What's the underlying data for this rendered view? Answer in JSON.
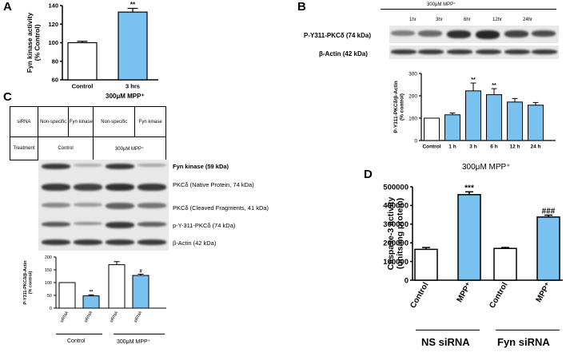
{
  "colors": {
    "bar_blue": "#79c2ef",
    "bar_white": "#ffffff",
    "stroke": "#000000"
  },
  "panelA": {
    "letter": "A",
    "caption": "300μM  MPP⁺",
    "chart_data": {
      "type": "bar",
      "categories": [
        "Control",
        "3 hrs"
      ],
      "values": [
        100,
        133
      ],
      "errors": [
        1.5,
        4
      ],
      "bar_colors": [
        "#ffffff",
        "#79c2ef"
      ],
      "significance": [
        "",
        "**"
      ],
      "ylabel": "Fyn kinase activity\n(% Control)",
      "ylim": [
        60,
        140
      ],
      "yticks": [
        60,
        80,
        100,
        120,
        140
      ]
    }
  },
  "panelB": {
    "letter": "B",
    "header": "300μM MPP⁺",
    "times": [
      "1hr",
      "3hr",
      "6hr",
      "12hr",
      "24hr"
    ],
    "blot1_label": "P-Y311-PKCδ (74 kDa)",
    "blot2_label": "β-Actin (42 kDa)",
    "caption": "300μM MPP⁺",
    "chart_data": {
      "type": "bar",
      "categories": [
        "Control",
        "1 h",
        "3 h",
        "6 h",
        "12 h",
        "24 h"
      ],
      "values": [
        100,
        115,
        222,
        205,
        172,
        158
      ],
      "errors": [
        0,
        8,
        35,
        27,
        16,
        12
      ],
      "bar_colors": [
        "#ffffff",
        "#79c2ef",
        "#79c2ef",
        "#79c2ef",
        "#79c2ef",
        "#79c2ef"
      ],
      "significance": [
        "",
        "",
        "**",
        "**",
        "",
        ""
      ],
      "ylabel": "P-Y311-PKCδ/β-Actin\n(% control)",
      "ylim": [
        0,
        300
      ],
      "yticks": [
        0,
        100,
        200,
        300
      ]
    }
  },
  "panelC": {
    "letter": "C",
    "table": {
      "siRNA": "siRNA",
      "ns1": "Non-specific",
      "fyn1": "Fyn kinase",
      "ns2": "Non-specific",
      "fyn2": "Fyn kinase",
      "treatment": "Treatment",
      "control": "Control",
      "mpp": "300μM MPP⁺"
    },
    "blot_labels": [
      "Fyn kinase (59 kDa)",
      "PKCδ (Native Protein, 74 kDa)",
      "PKCδ (Cleaved Fragments, 41 kDa)",
      "p-Y-311-PKCδ (74 kDa)",
      "β-Actin (42 kDa)"
    ],
    "group_control": "Control",
    "group_mpp": "300μM MPP⁺",
    "chart_data": {
      "type": "bar",
      "categories": [
        "NS siRNA",
        "Fyn siRNA",
        "NS siRNA",
        "Fyn siRNA"
      ],
      "values": [
        100,
        48,
        170,
        128
      ],
      "errors": [
        0,
        4,
        12,
        5
      ],
      "bar_colors": [
        "#ffffff",
        "#79c2ef",
        "#ffffff",
        "#79c2ef"
      ],
      "significance": [
        "",
        "**",
        "",
        "#"
      ],
      "ylabel": "P-Y311-PKCδ/β-Actin\n(% control)",
      "ylim": [
        0,
        200
      ],
      "yticks": [
        0,
        50,
        100,
        150,
        200
      ]
    }
  },
  "panelD": {
    "letter": "D",
    "group1": "NS siRNA",
    "group2": "Fyn siRNA",
    "chart_data": {
      "type": "bar",
      "categories": [
        "Control",
        "MPP⁺",
        "Control",
        "MPP⁺"
      ],
      "values": [
        165000,
        458000,
        170000,
        338000
      ],
      "errors": [
        10000,
        15000,
        5000,
        10000
      ],
      "bar_colors": [
        "#ffffff",
        "#79c2ef",
        "#ffffff",
        "#79c2ef"
      ],
      "significance": [
        "",
        "***",
        "",
        "###"
      ],
      "ylabel": "Caspase-3 activity\n(units/mg protein)",
      "ylim": [
        0,
        500000
      ],
      "yticks": [
        0,
        100000,
        200000,
        300000,
        400000,
        500000
      ]
    }
  }
}
